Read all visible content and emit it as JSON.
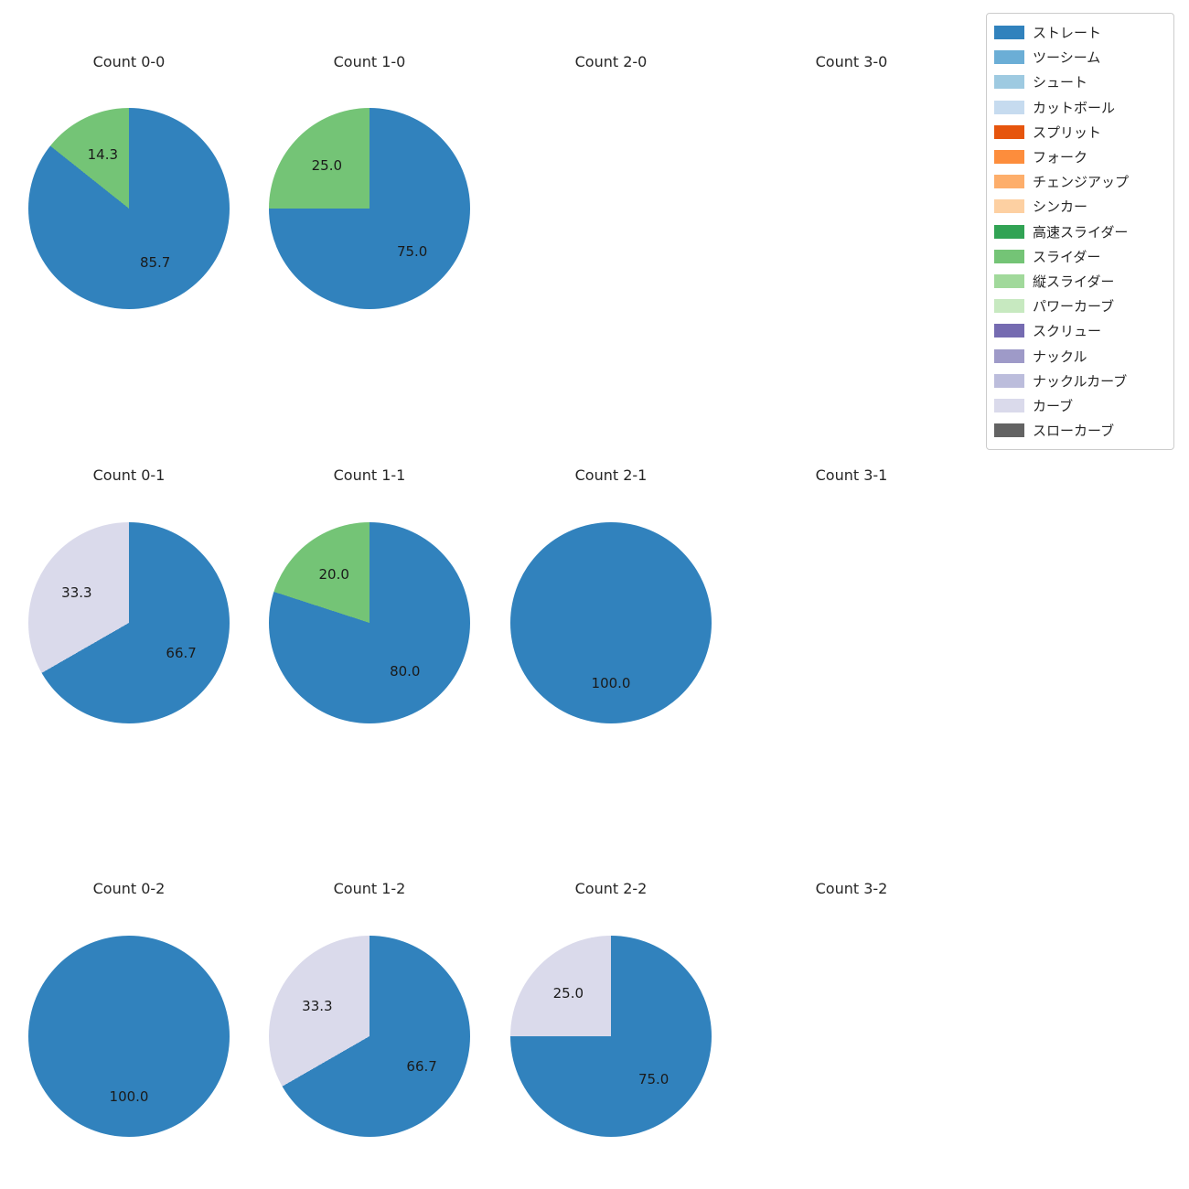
{
  "legend": {
    "items": [
      {
        "label": "ストレート",
        "color": "#3182bd"
      },
      {
        "label": "ツーシーム",
        "color": "#6baed6"
      },
      {
        "label": "シュート",
        "color": "#9ecae1"
      },
      {
        "label": "カットボール",
        "color": "#c6dbef"
      },
      {
        "label": "スプリット",
        "color": "#e6550d"
      },
      {
        "label": "フォーク",
        "color": "#fd8d3c"
      },
      {
        "label": "チェンジアップ",
        "color": "#fdae6b"
      },
      {
        "label": "シンカー",
        "color": "#fdd0a2"
      },
      {
        "label": "高速スライダー",
        "color": "#31a354"
      },
      {
        "label": "スライダー",
        "color": "#74c476"
      },
      {
        "label": "縦スライダー",
        "color": "#a1d99b"
      },
      {
        "label": "パワーカーブ",
        "color": "#c7e9c0"
      },
      {
        "label": "スクリュー",
        "color": "#756bb1"
      },
      {
        "label": "ナックル",
        "color": "#9e9ac8"
      },
      {
        "label": "ナックルカーブ",
        "color": "#bcbddc"
      },
      {
        "label": "カーブ",
        "color": "#dadaeb"
      },
      {
        "label": "スローカーブ",
        "color": "#636363"
      }
    ]
  },
  "chart_data": [
    {
      "type": "pie",
      "title": "Count 0-0",
      "slices": [
        {
          "label": "ストレート",
          "value": 85.7
        },
        {
          "label": "スライダー",
          "value": 14.3
        }
      ]
    },
    {
      "type": "pie",
      "title": "Count 1-0",
      "slices": [
        {
          "label": "ストレート",
          "value": 75.0
        },
        {
          "label": "スライダー",
          "value": 25.0
        }
      ]
    },
    {
      "type": "pie",
      "title": "Count 2-0",
      "slices": []
    },
    {
      "type": "pie",
      "title": "Count 3-0",
      "slices": []
    },
    {
      "type": "pie",
      "title": "Count 0-1",
      "slices": [
        {
          "label": "ストレート",
          "value": 66.7
        },
        {
          "label": "カーブ",
          "value": 33.3
        }
      ]
    },
    {
      "type": "pie",
      "title": "Count 1-1",
      "slices": [
        {
          "label": "ストレート",
          "value": 80.0
        },
        {
          "label": "スライダー",
          "value": 20.0
        }
      ]
    },
    {
      "type": "pie",
      "title": "Count 2-1",
      "slices": [
        {
          "label": "ストレート",
          "value": 100.0
        }
      ]
    },
    {
      "type": "pie",
      "title": "Count 3-1",
      "slices": []
    },
    {
      "type": "pie",
      "title": "Count 0-2",
      "slices": [
        {
          "label": "ストレート",
          "value": 100.0
        }
      ]
    },
    {
      "type": "pie",
      "title": "Count 1-2",
      "slices": [
        {
          "label": "ストレート",
          "value": 66.7
        },
        {
          "label": "カーブ",
          "value": 33.3
        }
      ]
    },
    {
      "type": "pie",
      "title": "Count 2-2",
      "slices": [
        {
          "label": "ストレート",
          "value": 75.0
        },
        {
          "label": "カーブ",
          "value": 25.0
        }
      ]
    },
    {
      "type": "pie",
      "title": "Count 3-2",
      "slices": []
    }
  ]
}
